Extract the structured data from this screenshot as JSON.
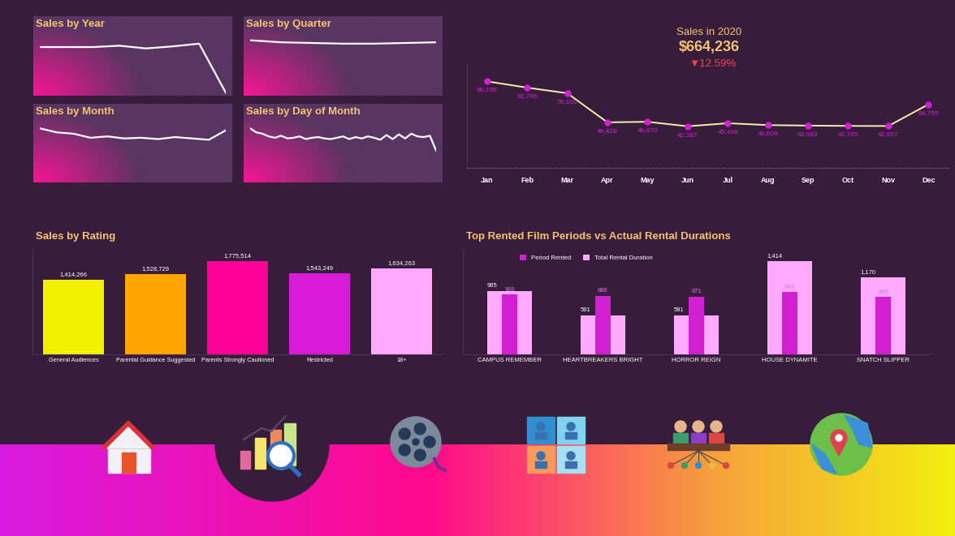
{
  "chart_data": [
    {
      "type": "line",
      "title": "Sales by Year",
      "values": [
        0.69,
        0.69,
        0.69,
        0.71,
        0.67,
        0.7,
        0.74,
        0.02
      ],
      "ylim": [
        0,
        1
      ],
      "tick_labels": false,
      "color": "#ffffff"
    },
    {
      "type": "line",
      "title": "Sales by Quarter",
      "values": [
        0.79,
        0.76,
        0.75,
        0.74,
        0.74,
        0.75,
        0.76
      ],
      "ylim": [
        0,
        1
      ],
      "tick_labels": false,
      "color": "#ffffff"
    },
    {
      "type": "line",
      "title": "Sales by Month",
      "values": [
        0.78,
        0.72,
        0.7,
        0.64,
        0.66,
        0.63,
        0.64,
        0.62,
        0.65,
        0.63,
        0.61,
        0.75
      ],
      "ylim": [
        0,
        1
      ],
      "tick_labels": false,
      "color": "#ffffff"
    },
    {
      "type": "line",
      "title": "Sales by Day of Month",
      "values": [
        0.78,
        0.72,
        0.7,
        0.66,
        0.64,
        0.67,
        0.63,
        0.64,
        0.66,
        0.62,
        0.64,
        0.65,
        0.63,
        0.62,
        0.64,
        0.66,
        0.62,
        0.65,
        0.63,
        0.66,
        0.64,
        0.61,
        0.68,
        0.62,
        0.69,
        0.63,
        0.7,
        0.66,
        0.65,
        0.67,
        0.45
      ],
      "ylim": [
        0,
        1
      ],
      "tick_labels": false,
      "color": "#ffffff"
    },
    {
      "type": "line",
      "title": "Sales in 2020",
      "subtitle": "$664,236",
      "annotations": [
        "▼12.59%"
      ],
      "categories": [
        "Jan",
        "Feb",
        "Mar",
        "Apr",
        "May",
        "Jun",
        "Jul",
        "Aug",
        "Sep",
        "Oct",
        "Nov",
        "Dec"
      ],
      "values": [
        88196,
        81786,
        76102,
        46428,
        46970,
        42387,
        45498,
        43609,
        43083,
        42765,
        42657,
        64755
      ],
      "value_labels": [
        "88,196",
        "81,786",
        "76,102",
        "46,428",
        "46,970",
        "42,387",
        "45,498",
        "43,609",
        "43,083",
        "42,765",
        "42,657",
        "64,755"
      ],
      "data_labels": true,
      "ylim": [
        0,
        105000
      ],
      "tick_labels": "x",
      "color": "#f4f0a6",
      "marker": "circle",
      "line_style": "solid"
    },
    {
      "type": "bar",
      "title": "Sales by Rating",
      "categories": [
        "General Audiences",
        "Parental Guidance Suggested",
        "Parents Strongly Cautioned",
        "Restricted",
        "18+"
      ],
      "values": [
        1414266,
        1528729,
        1775514,
        1543249,
        1634263
      ],
      "value_labels": [
        "1,414,266",
        "1,528,729",
        "1,775,514",
        "1,543,249",
        "1,634,263"
      ],
      "colors": [
        "#f2f200",
        "#ffa500",
        "#ff0096",
        "#d81bd8",
        "#ffaaff"
      ],
      "data_labels": true,
      "ylim": [
        0,
        2000000
      ],
      "tick_labels": "x"
    },
    {
      "type": "bar",
      "title": "Top Rented Film Periods vs Actual Rental Durations",
      "categories": [
        "CAMPUS REMEMBER",
        "HEARTBREAKERS BRIGHT",
        "HORROR REIGN",
        "HOUSE DYNAMITE",
        "SNATCH SLIPPER"
      ],
      "series": [
        {
          "name": "Period Rented",
          "color": "#d21fd2",
          "values": [
            906,
            886,
            871,
            944,
            869
          ]
        },
        {
          "name": "Total Rental Duration",
          "color": "#ffaaff",
          "values": [
            965,
            591,
            591,
            1414,
            1170
          ],
          "value_labels": [
            "965",
            "591",
            "591",
            "1,414",
            "1,170"
          ]
        }
      ],
      "data_labels": true,
      "legend": "upper left",
      "ylim": [
        0,
        1600
      ],
      "tick_labels": "x"
    }
  ]
}
